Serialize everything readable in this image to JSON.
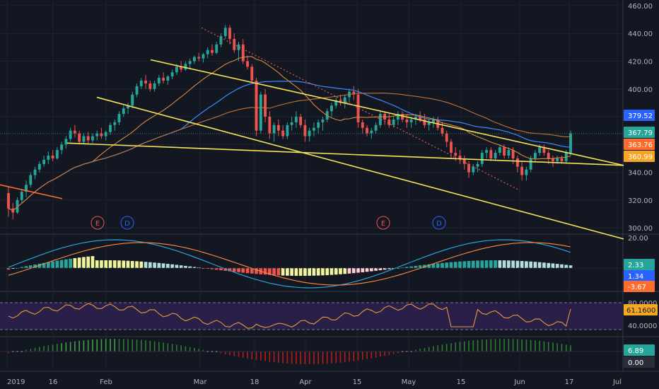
{
  "chart_data": {
    "type": "candlestick",
    "colors": {
      "background": "#131722",
      "grid": "#1f2330",
      "axis_text": "#b2b5be",
      "up": "#26a69a",
      "down": "#ef5350",
      "trendline": "#f6e35a",
      "orange_line": "#ff6d2e",
      "dotted_line": "#e05b4b",
      "ma_blue": "#3d8bfd",
      "ma_orange": "#d68b3a",
      "ma_orange_dark": "#c0733a",
      "macd_line": "#2aa3d7",
      "signal_line": "#ff8b3d",
      "rsi_line": "#e89a3a",
      "rsi_band": "#2a1f48"
    },
    "price_axis": {
      "ticks": [
        "460.00",
        "440.00",
        "420.00",
        "400.00",
        "380.00",
        "360.00",
        "340.00",
        "320.00",
        "300.00"
      ],
      "ylim": [
        296,
        462
      ]
    },
    "time_axis": {
      "labels": [
        "2019",
        "16",
        "Feb",
        "Mar",
        "18",
        "Apr",
        "15",
        "May",
        "15",
        "Jun",
        "17",
        "Jul"
      ]
    },
    "price_badges": [
      {
        "text": "379.52",
        "color": "#2962ff"
      },
      {
        "text": "367.79",
        "color": "#26a69a"
      },
      {
        "text": "363.76",
        "color": "#ff6d2e"
      },
      {
        "text": "360.99",
        "color": "#f6a623"
      }
    ],
    "candles": [
      [
        325,
        330,
        308,
        314
      ],
      [
        314,
        318,
        306,
        311
      ],
      [
        311,
        322,
        310,
        320
      ],
      [
        320,
        328,
        318,
        326
      ],
      [
        326,
        334,
        322,
        331
      ],
      [
        331,
        340,
        329,
        338
      ],
      [
        338,
        344,
        335,
        342
      ],
      [
        342,
        348,
        340,
        346
      ],
      [
        346,
        352,
        344,
        349
      ],
      [
        349,
        355,
        346,
        352
      ],
      [
        352,
        356,
        348,
        350
      ],
      [
        350,
        358,
        349,
        356
      ],
      [
        356,
        362,
        353,
        360
      ],
      [
        360,
        366,
        357,
        364
      ],
      [
        364,
        372,
        362,
        370
      ],
      [
        370,
        374,
        365,
        368
      ],
      [
        368,
        370,
        360,
        362
      ],
      [
        362,
        368,
        360,
        366
      ],
      [
        366,
        369,
        361,
        363
      ],
      [
        363,
        368,
        361,
        366
      ],
      [
        366,
        370,
        363,
        368
      ],
      [
        368,
        372,
        364,
        366
      ],
      [
        366,
        370,
        363,
        369
      ],
      [
        369,
        376,
        367,
        374
      ],
      [
        374,
        378,
        370,
        376
      ],
      [
        376,
        384,
        374,
        382
      ],
      [
        382,
        388,
        380,
        386
      ],
      [
        386,
        390,
        382,
        388
      ],
      [
        388,
        398,
        386,
        396
      ],
      [
        396,
        404,
        394,
        402
      ],
      [
        402,
        408,
        400,
        406
      ],
      [
        406,
        410,
        400,
        404
      ],
      [
        404,
        406,
        398,
        400
      ],
      [
        400,
        406,
        398,
        404
      ],
      [
        404,
        410,
        402,
        408
      ],
      [
        408,
        412,
        404,
        406
      ],
      [
        406,
        410,
        403,
        409
      ],
      [
        409,
        414,
        407,
        412
      ],
      [
        412,
        418,
        410,
        416
      ],
      [
        416,
        420,
        412,
        414
      ],
      [
        414,
        420,
        413,
        418
      ],
      [
        418,
        422,
        414,
        420
      ],
      [
        420,
        424,
        418,
        423
      ],
      [
        423,
        426,
        420,
        422
      ],
      [
        422,
        426,
        419,
        425
      ],
      [
        425,
        430,
        422,
        428
      ],
      [
        428,
        432,
        424,
        426
      ],
      [
        426,
        434,
        425,
        432
      ],
      [
        432,
        440,
        430,
        438
      ],
      [
        438,
        446,
        436,
        444
      ],
      [
        444,
        446,
        432,
        436
      ],
      [
        436,
        440,
        426,
        428
      ],
      [
        428,
        434,
        420,
        432
      ],
      [
        432,
        436,
        418,
        420
      ],
      [
        420,
        424,
        414,
        416
      ],
      [
        416,
        418,
        404,
        406
      ],
      [
        406,
        408,
        366,
        370
      ],
      [
        370,
        398,
        368,
        396
      ],
      [
        396,
        400,
        376,
        380
      ],
      [
        380,
        384,
        364,
        368
      ],
      [
        368,
        376,
        362,
        374
      ],
      [
        374,
        378,
        366,
        370
      ],
      [
        370,
        374,
        364,
        366
      ],
      [
        366,
        376,
        364,
        374
      ],
      [
        374,
        380,
        370,
        376
      ],
      [
        376,
        384,
        372,
        380
      ],
      [
        380,
        382,
        372,
        374
      ],
      [
        374,
        378,
        362,
        366
      ],
      [
        366,
        372,
        362,
        370
      ],
      [
        370,
        376,
        366,
        372
      ],
      [
        372,
        378,
        368,
        376
      ],
      [
        376,
        380,
        370,
        378
      ],
      [
        378,
        386,
        376,
        384
      ],
      [
        384,
        390,
        380,
        388
      ],
      [
        388,
        394,
        386,
        392
      ],
      [
        392,
        396,
        388,
        390
      ],
      [
        390,
        396,
        386,
        394
      ],
      [
        394,
        400,
        390,
        398
      ],
      [
        398,
        402,
        392,
        396
      ],
      [
        396,
        400,
        372,
        376
      ],
      [
        376,
        378,
        368,
        372
      ],
      [
        372,
        374,
        366,
        368
      ],
      [
        368,
        372,
        364,
        370
      ],
      [
        370,
        376,
        368,
        374
      ],
      [
        374,
        384,
        372,
        382
      ],
      [
        382,
        384,
        374,
        378
      ],
      [
        378,
        382,
        372,
        374
      ],
      [
        374,
        380,
        372,
        378
      ],
      [
        378,
        384,
        374,
        382
      ],
      [
        382,
        384,
        376,
        378
      ],
      [
        378,
        382,
        372,
        376
      ],
      [
        376,
        380,
        372,
        378
      ],
      [
        378,
        382,
        374,
        380
      ],
      [
        380,
        384,
        376,
        378
      ],
      [
        378,
        382,
        372,
        374
      ],
      [
        374,
        378,
        370,
        376
      ],
      [
        376,
        380,
        372,
        378
      ],
      [
        378,
        380,
        370,
        372
      ],
      [
        372,
        376,
        366,
        368
      ],
      [
        368,
        370,
        358,
        362
      ],
      [
        362,
        364,
        350,
        354
      ],
      [
        354,
        358,
        348,
        352
      ],
      [
        352,
        356,
        346,
        350
      ],
      [
        350,
        352,
        342,
        346
      ],
      [
        346,
        348,
        336,
        340
      ],
      [
        340,
        346,
        338,
        344
      ],
      [
        344,
        348,
        340,
        346
      ],
      [
        346,
        356,
        344,
        354
      ],
      [
        354,
        358,
        350,
        356
      ],
      [
        356,
        358,
        348,
        350
      ],
      [
        350,
        356,
        348,
        354
      ],
      [
        354,
        360,
        352,
        358
      ],
      [
        358,
        360,
        350,
        352
      ],
      [
        352,
        358,
        350,
        356
      ],
      [
        356,
        358,
        346,
        350
      ],
      [
        350,
        352,
        340,
        344
      ],
      [
        344,
        348,
        334,
        338
      ],
      [
        338,
        344,
        334,
        342
      ],
      [
        342,
        352,
        340,
        350
      ],
      [
        350,
        356,
        348,
        354
      ],
      [
        354,
        360,
        352,
        358
      ],
      [
        358,
        360,
        352,
        354
      ],
      [
        354,
        356,
        346,
        350
      ],
      [
        350,
        352,
        344,
        348
      ],
      [
        348,
        352,
        346,
        350
      ],
      [
        350,
        352,
        346,
        348
      ],
      [
        348,
        356,
        346,
        354
      ],
      [
        354,
        370,
        352,
        368
      ]
    ],
    "trendlines": [
      {
        "from": [
          95,
          361
        ],
        "to": [
          882,
          345
        ],
        "kind": "solid"
      },
      {
        "from": [
          137,
          394
        ],
        "to": [
          882,
          292
        ],
        "kind": "solid"
      },
      {
        "from": [
          213,
          421
        ],
        "to": [
          882,
          345
        ],
        "kind": "solid"
      },
      {
        "from": [
          0,
          331
        ],
        "to": [
          88,
          321
        ],
        "kind": "orange"
      },
      {
        "from": [
          285,
          444
        ],
        "to": [
          735,
          327
        ],
        "kind": "dotted"
      }
    ],
    "event_markers": [
      {
        "label": "E",
        "x": 138,
        "color": "#ef5350"
      },
      {
        "label": "D",
        "x": 180,
        "color": "#2962ff"
      },
      {
        "label": "E",
        "x": 542,
        "color": "#ef5350"
      },
      {
        "label": "D",
        "x": 621,
        "color": "#2962ff"
      }
    ],
    "macd": {
      "ticks": [
        "20.00"
      ],
      "badges": [
        {
          "text": "2.33",
          "color": "#26a69a"
        },
        {
          "text": "1.34",
          "color": "#2962ff"
        },
        {
          "text": "-3.67",
          "color": "#ff6d2e"
        }
      ]
    },
    "rsi": {
      "ticks": [
        "80.0000",
        "40.0000"
      ],
      "badges": [
        {
          "text": "61.1600",
          "color": "#f6a623"
        }
      ]
    },
    "osc": {
      "badges": [
        {
          "text": "6.89",
          "color": "#26a69a"
        },
        {
          "text": "0.00",
          "color": "#2a2e39"
        }
      ]
    }
  }
}
